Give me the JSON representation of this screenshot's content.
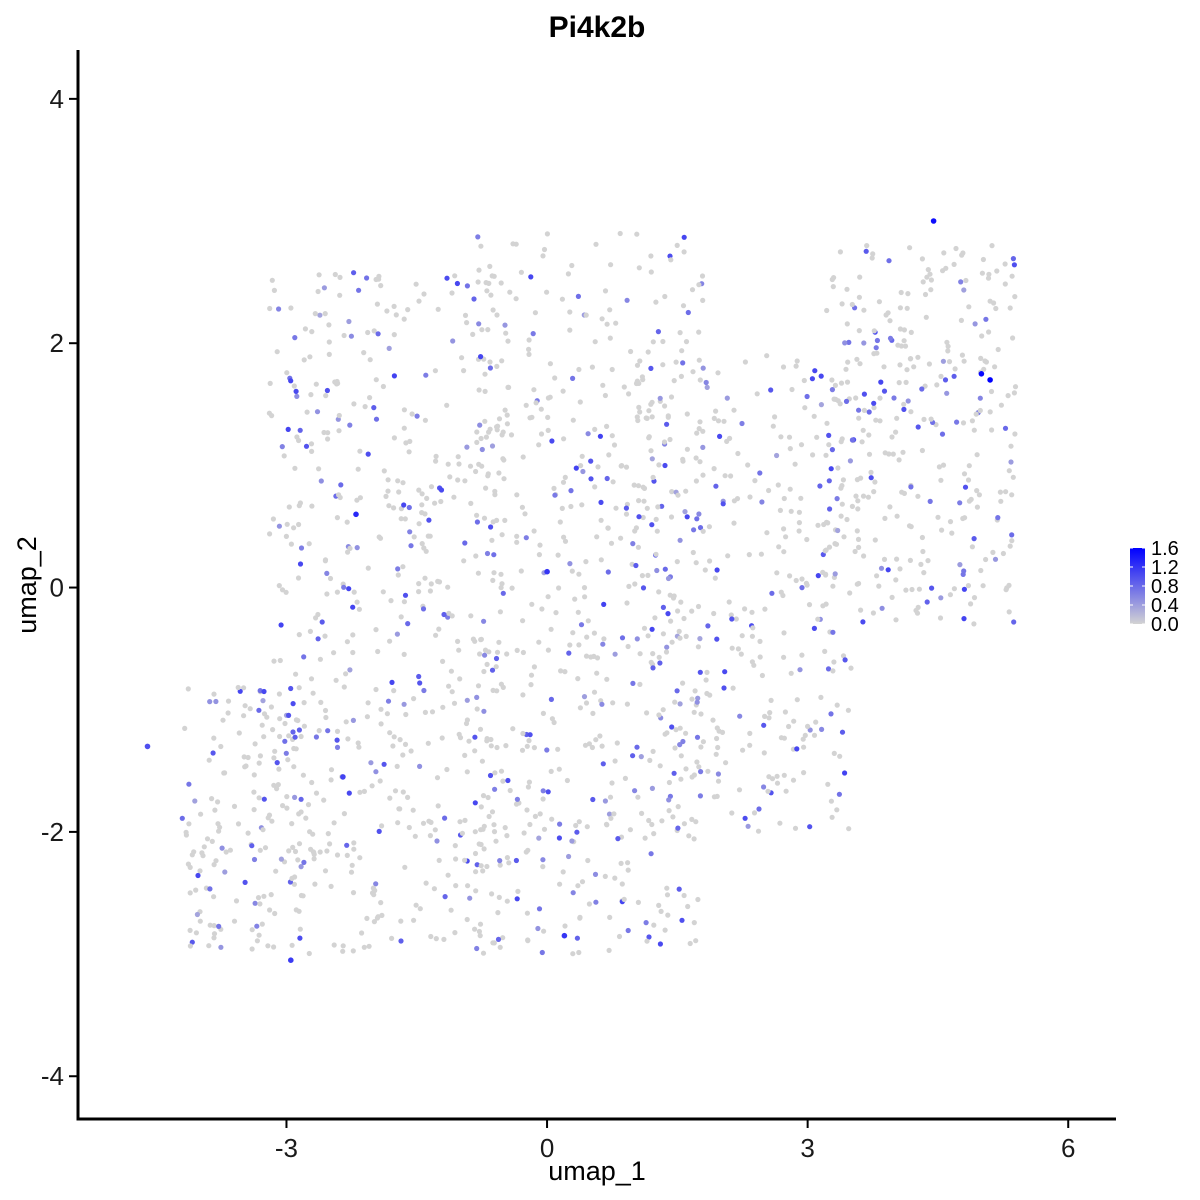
{
  "chart_data": {
    "type": "scatter",
    "title": "Pi4k2b",
    "xlabel": "umap_1",
    "ylabel": "umap_2",
    "xlim": [
      -5.4,
      6.55
    ],
    "ylim": [
      -4.35,
      4.4
    ],
    "x_ticks": [
      -3,
      0,
      3,
      6
    ],
    "x_tick_labels": [
      "-3",
      "0",
      "3",
      "6"
    ],
    "y_ticks": [
      -4,
      -2,
      0,
      2,
      4
    ],
    "y_tick_labels": [
      "-4",
      "-2",
      "0",
      "2",
      "4"
    ],
    "grid": false,
    "legend": {
      "placement": "right",
      "type": "colorbar",
      "min": 0,
      "max": 1.6,
      "ticks": [
        0.0,
        0.4,
        0.8,
        1.2,
        1.6
      ],
      "tick_labels": [
        "0.0",
        "0.4",
        "0.8",
        "1.2",
        "1.6"
      ],
      "low_color": "#d3d3d3",
      "high_color": "#0000ff"
    },
    "n_points_approx": 1900,
    "fraction_expressing_approx": 0.22,
    "density_regions": [
      {
        "x_range": [
          -3.2,
          -0.5
        ],
        "y_range": [
          -3.0,
          2.6
        ],
        "weight": 0.3
      },
      {
        "x_range": [
          -0.8,
          1.8
        ],
        "y_range": [
          -3.0,
          2.9
        ],
        "weight": 0.27
      },
      {
        "x_range": [
          1.0,
          3.5
        ],
        "y_range": [
          -2.0,
          1.9
        ],
        "weight": 0.18
      },
      {
        "x_range": [
          3.2,
          5.4
        ],
        "y_range": [
          -0.3,
          2.8
        ],
        "weight": 0.17
      },
      {
        "x_range": [
          -4.2,
          -2.8
        ],
        "y_range": [
          -3.0,
          -0.8
        ],
        "weight": 0.08
      }
    ],
    "high_expression_points": [
      {
        "x": 5.1,
        "y": 1.7,
        "value": 1.6
      },
      {
        "x": 5.0,
        "y": 1.75,
        "value": 1.55
      },
      {
        "x": 4.45,
        "y": 3.0,
        "value": 1.5
      },
      {
        "x": -2.2,
        "y": 0.6,
        "value": 1.3
      },
      {
        "x": 0.0,
        "y": 0.13,
        "value": 1.2
      },
      {
        "x": 0.2,
        "y": -2.85,
        "value": 1.2
      },
      {
        "x": -2.95,
        "y": -3.05,
        "value": 1.15
      },
      {
        "x": -2.35,
        "y": -1.55,
        "value": 1.1
      },
      {
        "x": -4.6,
        "y": -1.3,
        "value": 1.0
      }
    ]
  }
}
